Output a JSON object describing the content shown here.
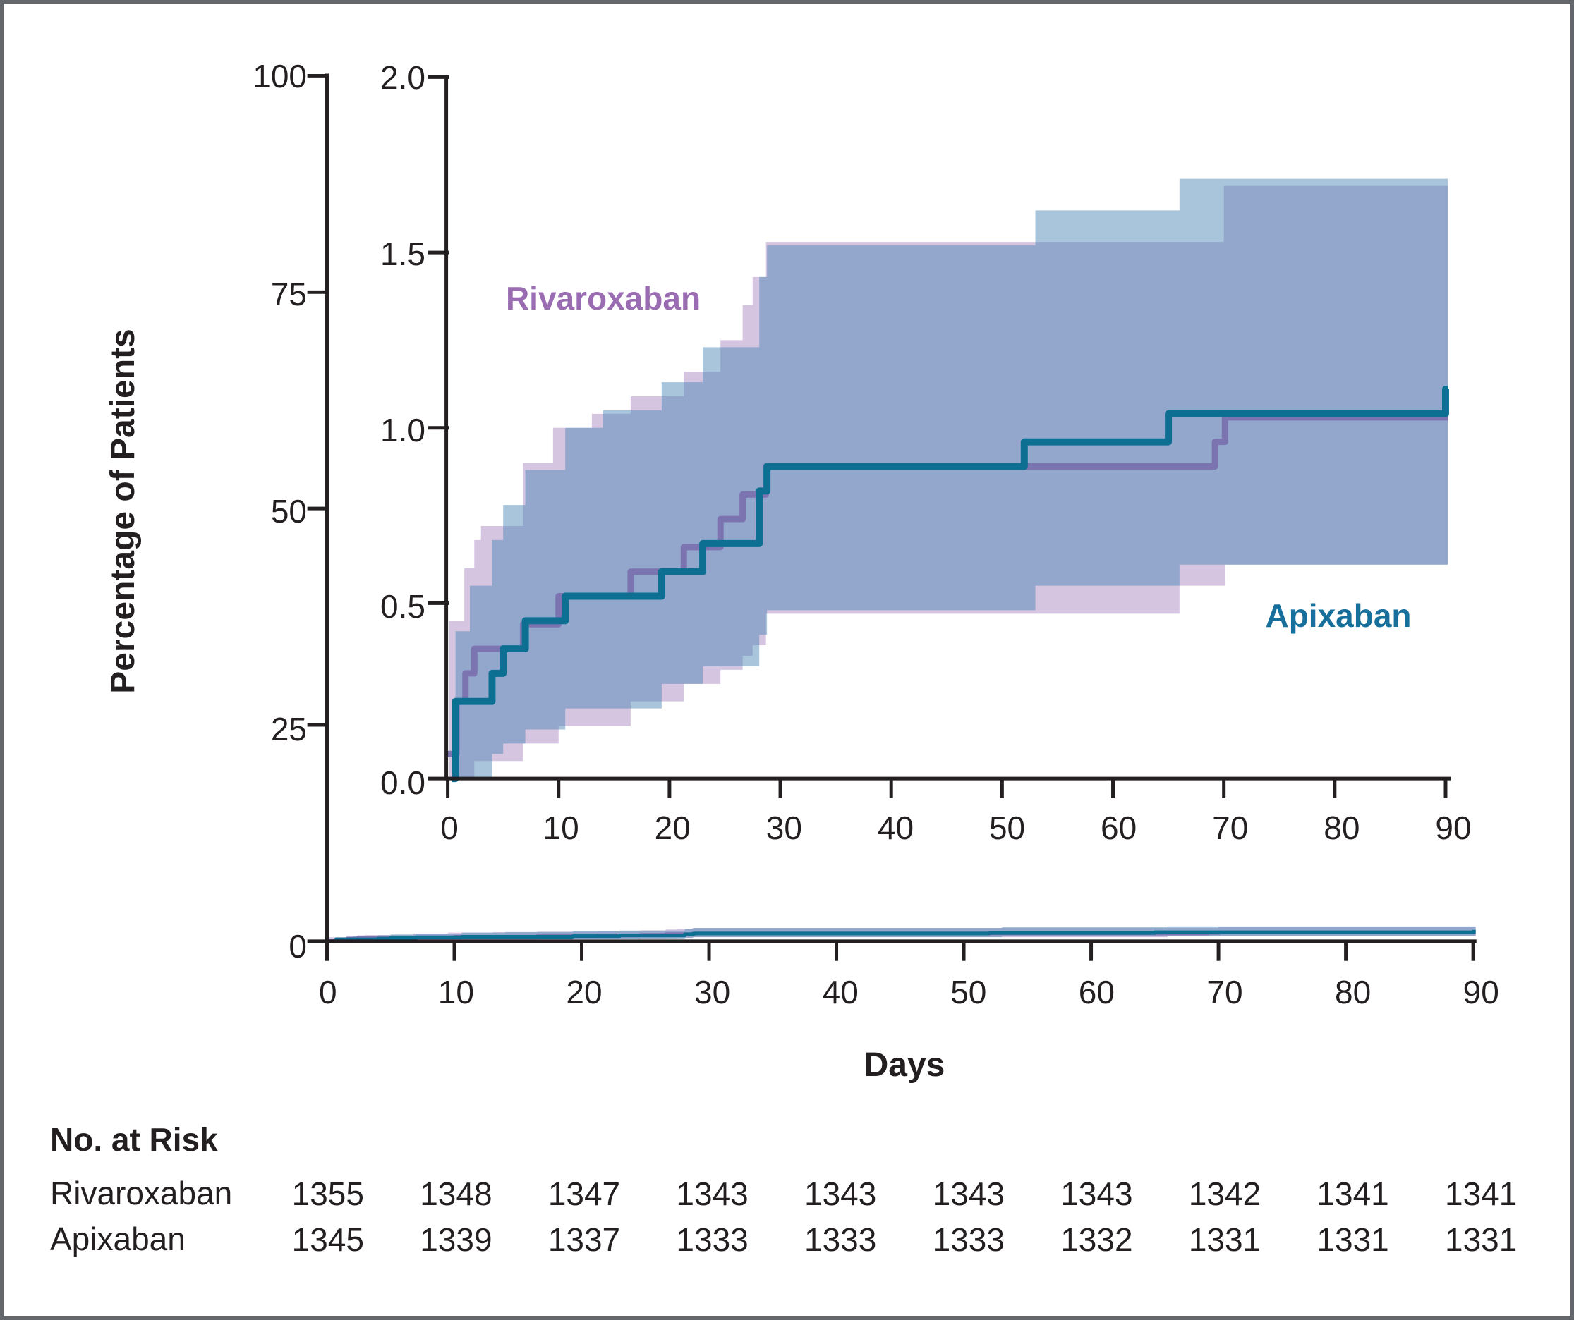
{
  "figure": {
    "background": "#ffffff",
    "border_color": "#63676b",
    "text_color": "#231f20"
  },
  "labels": {
    "y_axis_title": "Percentage of Patients",
    "x_axis_title": "Days",
    "rivaroxaban_annotation": "Rivaroxaban",
    "apixaban_annotation": "Apixaban"
  },
  "colors": {
    "axis": "#231f20",
    "rivaroxaban_line": "#7b74b0",
    "rivaroxaban_label": "#9a6cb2",
    "rivaroxaban_band": "rgba(151,111,181,0.40)",
    "apixaban_line": "#0d7093",
    "apixaban_label": "#176f9b",
    "apixaban_band": "rgba(72,131,180,0.47)"
  },
  "chart_data": {
    "type": "line",
    "subtype": "kaplan-meier-cumulative-incidence-step-curves-with-95CI-bands",
    "xlabel": "Days",
    "ylabel": "Percentage of Patients",
    "main_panel": {
      "xlim": [
        0,
        90
      ],
      "ylim": [
        0,
        100
      ],
      "xticks": [
        0,
        10,
        20,
        30,
        40,
        50,
        60,
        70,
        80,
        90
      ],
      "xtick_labels": [
        "0",
        "10",
        "20",
        "30",
        "40",
        "50",
        "60",
        "70",
        "80",
        "90"
      ],
      "yticks": [
        100,
        75,
        50,
        25,
        0
      ],
      "ytick_labels": [
        "100",
        "75",
        "50",
        "25",
        "0"
      ],
      "grid": false
    },
    "inset_panel": {
      "xlim": [
        0,
        90
      ],
      "ylim": [
        0,
        2.0
      ],
      "xticks": [
        0,
        10,
        20,
        30,
        40,
        50,
        60,
        70,
        80,
        90
      ],
      "xtick_labels": [
        "0",
        "10",
        "20",
        "30",
        "40",
        "50",
        "60",
        "70",
        "80",
        "90"
      ],
      "yticks": [
        2.0,
        1.5,
        1.0,
        0.5,
        0.0
      ],
      "ytick_labels": [
        "2.0",
        "1.5",
        "1.0",
        "0.5",
        "0.0"
      ],
      "grid": false
    },
    "legend_position": "annotations-inside-inset",
    "series": [
      {
        "name": "Rivaroxaban",
        "end_day": 90.2,
        "steps": [
          [
            0,
            0.07
          ],
          [
            0.8,
            0.22
          ],
          [
            1.6,
            0.3
          ],
          [
            2.4,
            0.37
          ],
          [
            6.8,
            0.44
          ],
          [
            10,
            0.52
          ],
          [
            16.5,
            0.59
          ],
          [
            21.3,
            0.66
          ],
          [
            24.6,
            0.74
          ],
          [
            26.6,
            0.81
          ],
          [
            28.7,
            0.89
          ],
          [
            69.2,
            0.96
          ],
          [
            70.1,
            1.03
          ]
        ],
        "ci_upper": [
          [
            0.15,
            0.45
          ],
          [
            1.5,
            0.6
          ],
          [
            2.4,
            0.68
          ],
          [
            3,
            0.72
          ],
          [
            6.8,
            0.9
          ],
          [
            9.5,
            1.0
          ],
          [
            13,
            1.04
          ],
          [
            16.5,
            1.09
          ],
          [
            21.3,
            1.16
          ],
          [
            24.6,
            1.25
          ],
          [
            26.6,
            1.35
          ],
          [
            27.5,
            1.43
          ],
          [
            28.7,
            1.53
          ],
          [
            70,
            1.69
          ]
        ],
        "ci_lower": [
          [
            0.15,
            0.0
          ],
          [
            2.4,
            0.05
          ],
          [
            6.8,
            0.1
          ],
          [
            10,
            0.15
          ],
          [
            16.5,
            0.22
          ],
          [
            21.3,
            0.27
          ],
          [
            24.6,
            0.31
          ],
          [
            26.6,
            0.35
          ],
          [
            27.5,
            0.38
          ],
          [
            28.7,
            0.47
          ],
          [
            66,
            0.55
          ],
          [
            70.1,
            0.61
          ]
        ]
      },
      {
        "name": "Apixaban",
        "end_day": 90.2,
        "steps": [
          [
            0.35,
            0.0
          ],
          [
            0.7,
            0.22
          ],
          [
            4,
            0.3
          ],
          [
            5,
            0.37
          ],
          [
            7,
            0.45
          ],
          [
            10.6,
            0.52
          ],
          [
            19.3,
            0.59
          ],
          [
            23,
            0.67
          ],
          [
            28.1,
            0.82
          ],
          [
            28.8,
            0.89
          ],
          [
            52,
            0.96
          ],
          [
            65,
            1.04
          ],
          [
            90,
            1.11
          ]
        ],
        "ci_upper": [
          [
            0.7,
            0.42
          ],
          [
            2,
            0.55
          ],
          [
            4,
            0.68
          ],
          [
            5,
            0.78
          ],
          [
            7,
            0.88
          ],
          [
            10.6,
            1.0
          ],
          [
            14,
            1.05
          ],
          [
            19.3,
            1.13
          ],
          [
            23,
            1.23
          ],
          [
            28.1,
            1.43
          ],
          [
            28.8,
            1.52
          ],
          [
            53,
            1.62
          ],
          [
            66,
            1.71
          ]
        ],
        "ci_lower": [
          [
            0.7,
            0.0
          ],
          [
            4,
            0.07
          ],
          [
            5,
            0.1
          ],
          [
            7,
            0.14
          ],
          [
            10.6,
            0.2
          ],
          [
            19.3,
            0.27
          ],
          [
            23,
            0.32
          ],
          [
            28.1,
            0.41
          ],
          [
            28.8,
            0.48
          ],
          [
            53,
            0.55
          ],
          [
            66,
            0.61
          ]
        ]
      }
    ]
  },
  "risk_table": {
    "header": "No. at Risk",
    "days": [
      0,
      10,
      20,
      30,
      40,
      50,
      60,
      70,
      80,
      90
    ],
    "rows": [
      {
        "label": "Rivaroxaban",
        "counts": [
          "1355",
          "1348",
          "1347",
          "1343",
          "1343",
          "1343",
          "1343",
          "1342",
          "1341",
          "1341"
        ]
      },
      {
        "label": "Apixaban",
        "counts": [
          "1345",
          "1339",
          "1337",
          "1333",
          "1333",
          "1333",
          "1332",
          "1331",
          "1331",
          "1331"
        ]
      }
    ]
  }
}
